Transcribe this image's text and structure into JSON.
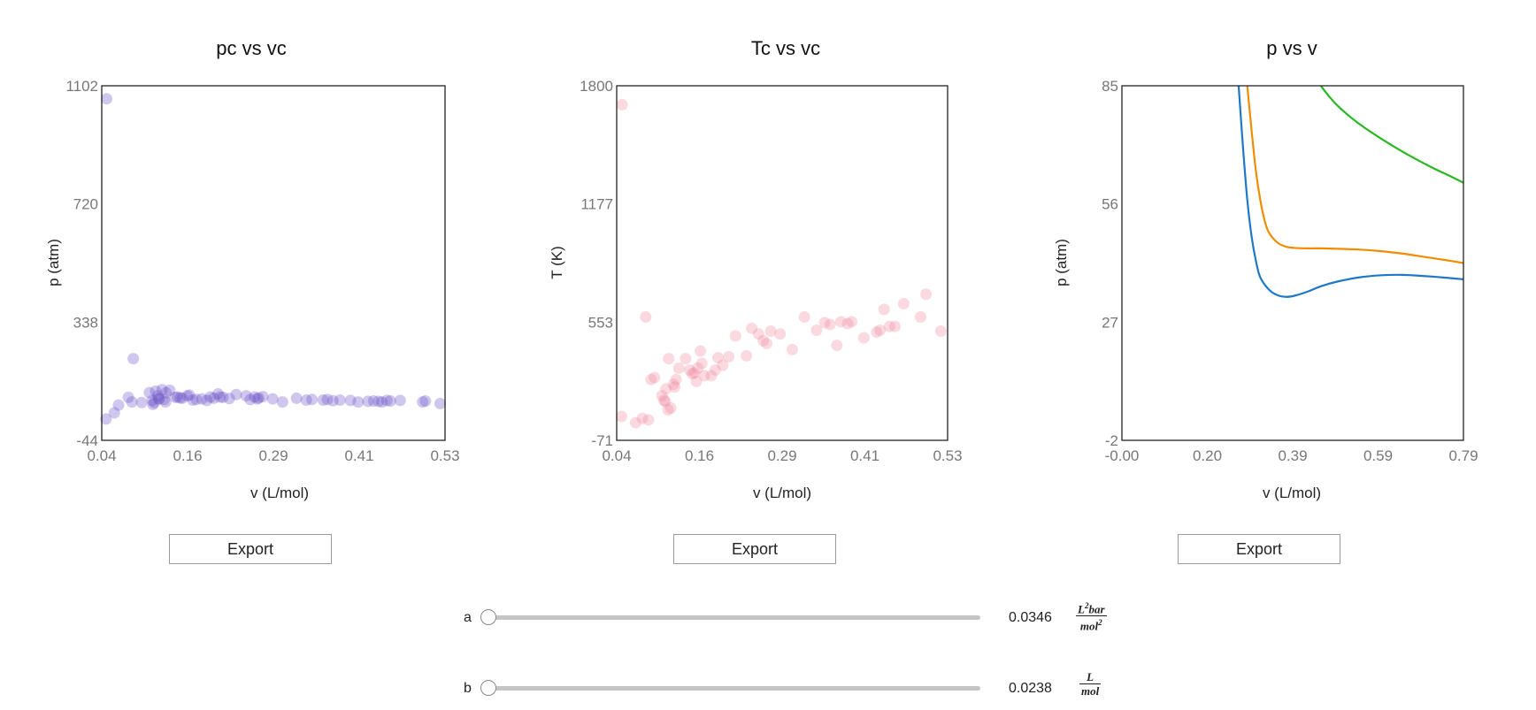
{
  "panels": [
    {
      "title": "pc vs vc",
      "xlabel": "v (L/mol)",
      "ylabel": "p (atm)",
      "export_label": "Export"
    },
    {
      "title": "Tc vs vc",
      "xlabel": "v (L/mol)",
      "ylabel": "T (K)",
      "export_label": "Export"
    },
    {
      "title": "p vs v",
      "xlabel": "v (L/mol)",
      "ylabel": "p (atm)",
      "export_label": "Export"
    }
  ],
  "sliders": [
    {
      "label": "a",
      "value": "0.0346",
      "fraction": 0.0,
      "unit_num": "L",
      "unit_num_exp": "2",
      "unit_num_rest": "bar",
      "unit_den": "mol",
      "unit_den_exp": "2"
    },
    {
      "label": "b",
      "value": "0.0238",
      "fraction": 0.0,
      "unit_num": "L",
      "unit_num_exp": "",
      "unit_num_rest": "",
      "unit_den": "mol",
      "unit_den_exp": ""
    }
  ],
  "chart_data": [
    {
      "type": "scatter",
      "title": "pc vs vc",
      "xlabel": "v (L/mol)",
      "ylabel": "p (atm)",
      "xlim": [
        0.04,
        0.53
      ],
      "ylim": [
        -44,
        1102
      ],
      "xticks": [
        "0.04",
        "0.16",
        "0.29",
        "0.41",
        "0.53"
      ],
      "yticks": [
        "-44",
        "338",
        "720",
        "1102"
      ],
      "color": "#6a51c8",
      "x": [
        0.047,
        0.046,
        0.085,
        0.108,
        0.064,
        0.058,
        0.078,
        0.097,
        0.083,
        0.113,
        0.117,
        0.122,
        0.126,
        0.12,
        0.115,
        0.132,
        0.129,
        0.137,
        0.145,
        0.148,
        0.152,
        0.155,
        0.162,
        0.165,
        0.17,
        0.175,
        0.183,
        0.19,
        0.195,
        0.2,
        0.206,
        0.213,
        0.222,
        0.232,
        0.246,
        0.252,
        0.258,
        0.262,
        0.27,
        0.284,
        0.298,
        0.318,
        0.332,
        0.34,
        0.356,
        0.362,
        0.37,
        0.38,
        0.395,
        0.406,
        0.42,
        0.428,
        0.435,
        0.44,
        0.447,
        0.452,
        0.466,
        0.498,
        0.502,
        0.523,
        0.112,
        0.121,
        0.131,
        0.209,
        0.264
      ],
      "y": [
        1060,
        25,
        220,
        110,
        70,
        45,
        95,
        78,
        80,
        72,
        115,
        90,
        120,
        100,
        78,
        110,
        88,
        118,
        95,
        96,
        93,
        92,
        100,
        102,
        86,
        88,
        90,
        85,
        96,
        92,
        106,
        95,
        91,
        104,
        100,
        88,
        96,
        90,
        97,
        90,
        80,
        92,
        86,
        88,
        86,
        88,
        84,
        86,
        85,
        80,
        82,
        83,
        82,
        80,
        85,
        83,
        85,
        80,
        83,
        75,
        85,
        90,
        80,
        96,
        93
      ]
    },
    {
      "type": "scatter",
      "title": "Tc vs vc",
      "xlabel": "v (L/mol)",
      "ylabel": "T (K)",
      "xlim": [
        0.04,
        0.53
      ],
      "ylim": [
        -71,
        1800
      ],
      "xticks": [
        "0.04",
        "0.16",
        "0.29",
        "0.41",
        "0.53"
      ],
      "yticks": [
        "-71",
        "553",
        "1177",
        "1800"
      ],
      "color": "#f08aa0",
      "x": [
        0.048,
        0.047,
        0.068,
        0.078,
        0.083,
        0.091,
        0.096,
        0.087,
        0.112,
        0.107,
        0.11,
        0.117,
        0.116,
        0.12,
        0.126,
        0.128,
        0.124,
        0.132,
        0.142,
        0.148,
        0.152,
        0.155,
        0.16,
        0.164,
        0.166,
        0.17,
        0.18,
        0.186,
        0.19,
        0.197,
        0.206,
        0.216,
        0.232,
        0.24,
        0.25,
        0.257,
        0.262,
        0.268,
        0.282,
        0.3,
        0.318,
        0.336,
        0.348,
        0.356,
        0.366,
        0.372,
        0.382,
        0.388,
        0.406,
        0.425,
        0.43,
        0.436,
        0.444,
        0.452,
        0.465,
        0.49,
        0.498,
        0.52,
        0.113,
        0.158
      ],
      "y": [
        1700,
        55,
        22,
        45,
        580,
        250,
        260,
        37,
        135,
        165,
        140,
        360,
        90,
        100,
        210,
        250,
        225,
        310,
        360,
        300,
        280,
        285,
        310,
        400,
        335,
        270,
        270,
        300,
        365,
        325,
        370,
        480,
        375,
        520,
        490,
        455,
        440,
        505,
        490,
        408,
        580,
        510,
        550,
        540,
        430,
        555,
        545,
        555,
        470,
        500,
        510,
        620,
        530,
        530,
        650,
        580,
        700,
        505,
        200,
        240
      ]
    },
    {
      "type": "line",
      "title": "p vs v",
      "xlabel": "v (L/mol)",
      "ylabel": "p (atm)",
      "xlim": [
        0.0,
        0.79
      ],
      "ylim": [
        -2,
        85
      ],
      "xticks": [
        "-0.00",
        "0.20",
        "0.39",
        "0.59",
        "0.79"
      ],
      "yticks": [
        "-2",
        "27",
        "56",
        "85"
      ],
      "series": [
        {
          "color": "#1f77c8",
          "x": [
            0.27,
            0.28,
            0.29,
            0.3,
            0.31,
            0.32,
            0.34,
            0.36,
            0.38,
            0.4,
            0.43,
            0.46,
            0.5,
            0.55,
            0.6,
            0.65,
            0.7,
            0.75,
            0.79
          ],
          "y": [
            85,
            70,
            57,
            48,
            42,
            38,
            35,
            33.6,
            33.2,
            33.5,
            34.5,
            35.8,
            37.0,
            38.0,
            38.5,
            38.6,
            38.3,
            37.9,
            37.5
          ]
        },
        {
          "color": "#f08c00",
          "x": [
            0.29,
            0.3,
            0.31,
            0.32,
            0.33,
            0.34,
            0.36,
            0.38,
            0.4,
            0.43,
            0.46,
            0.5,
            0.55,
            0.6,
            0.65,
            0.7,
            0.75,
            0.79
          ],
          "y": [
            85,
            74,
            64,
            57,
            52,
            49,
            46.5,
            45.5,
            45.2,
            45.1,
            45.1,
            45.0,
            44.8,
            44.4,
            43.8,
            43.0,
            42.2,
            41.5
          ]
        },
        {
          "color": "#27b81e",
          "x": [
            0.46,
            0.48,
            0.5,
            0.53,
            0.56,
            0.6,
            0.64,
            0.68,
            0.72,
            0.76,
            0.79
          ],
          "y": [
            85,
            82.3,
            80.0,
            77.2,
            74.8,
            72.0,
            69.4,
            67.0,
            64.8,
            62.8,
            61.2
          ]
        }
      ]
    }
  ]
}
